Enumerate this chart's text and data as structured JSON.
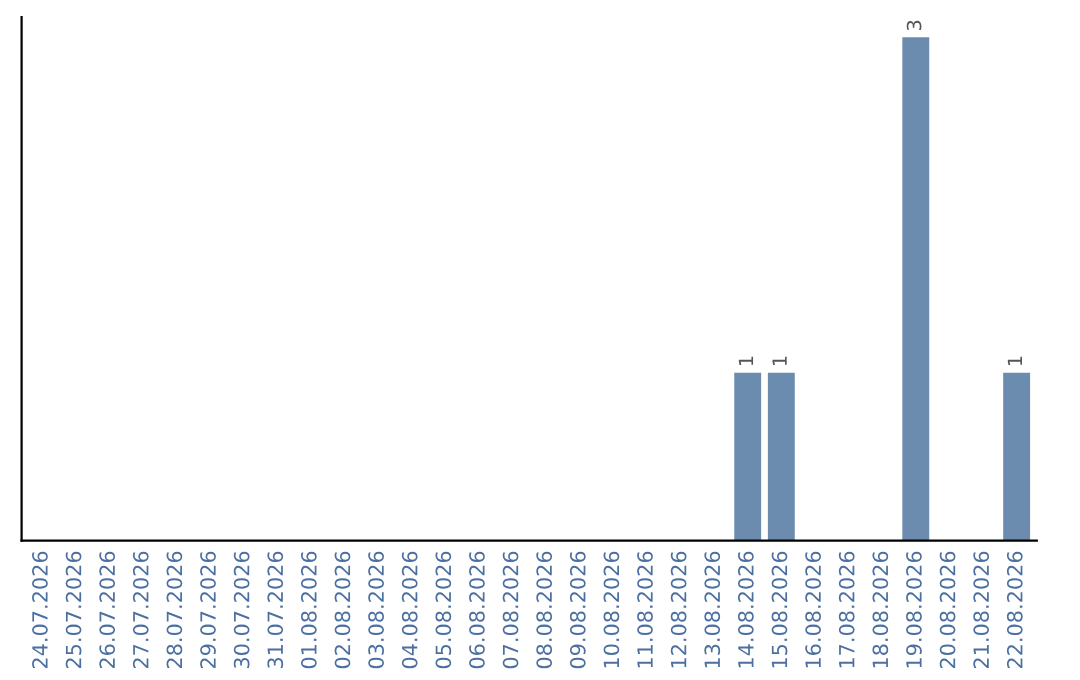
{
  "chart_data": {
    "type": "bar",
    "categories": [
      "24.07.2026",
      "25.07.2026",
      "26.07.2026",
      "27.07.2026",
      "28.07.2026",
      "29.07.2026",
      "30.07.2026",
      "31.07.2026",
      "01.08.2026",
      "02.08.2026",
      "03.08.2026",
      "04.08.2026",
      "05.08.2026",
      "06.08.2026",
      "07.08.2026",
      "08.08.2026",
      "09.08.2026",
      "10.08.2026",
      "11.08.2026",
      "12.08.2026",
      "13.08.2026",
      "14.08.2026",
      "15.08.2026",
      "16.08.2026",
      "17.08.2026",
      "18.08.2026",
      "19.08.2026",
      "20.08.2026",
      "21.08.2026",
      "22.08.2026"
    ],
    "values": [
      null,
      null,
      null,
      null,
      null,
      null,
      null,
      null,
      null,
      null,
      null,
      null,
      null,
      null,
      null,
      null,
      null,
      null,
      null,
      null,
      null,
      1,
      1,
      null,
      null,
      null,
      3,
      null,
      null,
      1
    ],
    "data_labels": true,
    "color": "#6b8cae",
    "tick_labels": "x",
    "grid": false
  }
}
